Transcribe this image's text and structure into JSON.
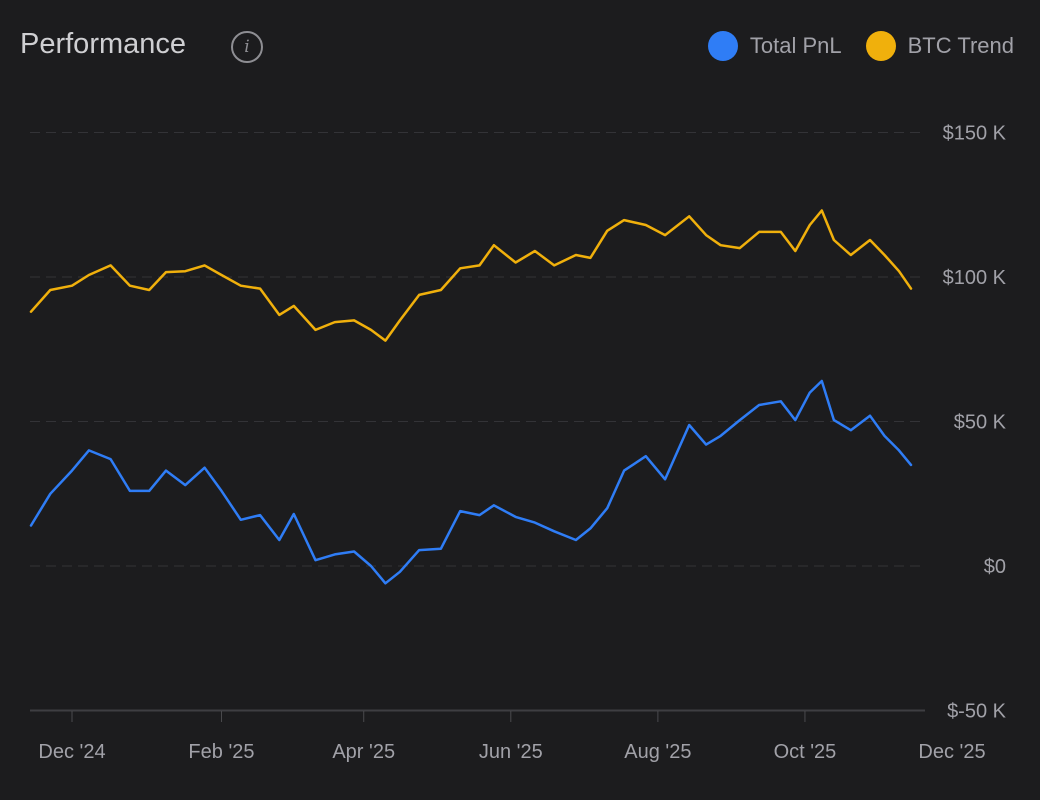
{
  "header": {
    "title": "Performance",
    "info_icon": "info-icon"
  },
  "colors": {
    "background": "#1c1c1e",
    "total_pnl": "#2f7df6",
    "btc_trend": "#f0b00c",
    "grid": "#3a3a3e",
    "text": "#a1a1a8"
  },
  "chart_data": {
    "type": "line",
    "title": "Performance",
    "xlabel": "",
    "ylabel": "",
    "ylim": [
      -50000,
      150000
    ],
    "yticks": [
      150000,
      100000,
      50000,
      0,
      -50000
    ],
    "ytick_labels": [
      "$150 K",
      "$100 K",
      "$50 K",
      "$0",
      "$-50 K"
    ],
    "xticks": [
      "2024-12-01",
      "2025-02-01",
      "2025-04-01",
      "2025-06-01",
      "2025-08-01",
      "2025-10-01",
      "2025-12-01"
    ],
    "xtick_labels": [
      "Dec '24",
      "Feb '25",
      "Apr '25",
      "Jun '25",
      "Aug '25",
      "Oct '25",
      "Dec '25"
    ],
    "grid": true,
    "legend_position": "top-right",
    "x": [
      "2024-11-14",
      "2024-11-22",
      "2024-12-01",
      "2024-12-08",
      "2024-12-17",
      "2024-12-25",
      "2025-01-02",
      "2025-01-09",
      "2025-01-17",
      "2025-01-25",
      "2025-02-01",
      "2025-02-09",
      "2025-02-17",
      "2025-02-25",
      "2025-03-03",
      "2025-03-12",
      "2025-03-20",
      "2025-03-28",
      "2025-04-04",
      "2025-04-10",
      "2025-04-16",
      "2025-04-24",
      "2025-05-03",
      "2025-05-11",
      "2025-05-19",
      "2025-05-25",
      "2025-06-03",
      "2025-06-11",
      "2025-06-19",
      "2025-06-28",
      "2025-07-04",
      "2025-07-11",
      "2025-07-18",
      "2025-07-27",
      "2025-08-04",
      "2025-08-14",
      "2025-08-21",
      "2025-08-27",
      "2025-09-04",
      "2025-09-12",
      "2025-09-21",
      "2025-09-27",
      "2025-10-03",
      "2025-10-08",
      "2025-10-13",
      "2025-10-20",
      "2025-10-28",
      "2025-11-03",
      "2025-11-09",
      "2025-11-14"
    ],
    "series": [
      {
        "name": "Total PnL",
        "color": "#2f7df6",
        "values": [
          14000,
          25000,
          33000,
          40000,
          37000,
          26000,
          26000,
          33000,
          28000,
          34000,
          26000,
          16000,
          17600,
          9000,
          18000,
          2000,
          4000,
          5000,
          0,
          -6000,
          -2000,
          5500,
          6000,
          19000,
          17600,
          21000,
          17000,
          15000,
          12000,
          9000,
          13000,
          20000,
          33000,
          38000,
          30000,
          48800,
          42000,
          45000,
          50500,
          55700,
          57000,
          50500,
          60000,
          64000,
          50500,
          47000,
          52000,
          45000,
          40000,
          35000
        ]
      },
      {
        "name": "BTC Trend",
        "color": "#f0b00c",
        "values": [
          88000,
          95500,
          97000,
          100700,
          104000,
          97000,
          95500,
          101700,
          102000,
          104000,
          100700,
          97000,
          96000,
          86900,
          90000,
          81700,
          84400,
          85000,
          81700,
          78000,
          85000,
          93800,
          95500,
          103000,
          104000,
          111000,
          105000,
          109000,
          104000,
          107600,
          106600,
          116000,
          119700,
          118000,
          114500,
          121000,
          114500,
          111000,
          110000,
          115600,
          115600,
          109000,
          118000,
          123000,
          112800,
          107600,
          112800,
          107600,
          102000,
          96000
        ]
      }
    ]
  }
}
